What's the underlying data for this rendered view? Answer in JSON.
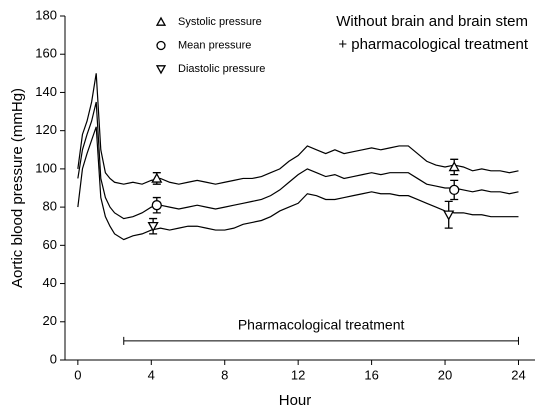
{
  "chart_data": {
    "type": "line",
    "annotation": [
      "Without brain and brain stem",
      "+ pharmacological treatment"
    ],
    "xlabel": "Hour",
    "ylabel": "Aortic blood pressure (mmHg)",
    "xlim": [
      -0.7,
      24.9
    ],
    "xticks": [
      0,
      4,
      8,
      12,
      16,
      20,
      24
    ],
    "ylim": [
      0,
      180
    ],
    "yticks": [
      0,
      20,
      40,
      60,
      80,
      100,
      120,
      140,
      160,
      180
    ],
    "x": [
      0,
      0.25,
      0.5,
      0.75,
      1,
      1.25,
      1.5,
      1.75,
      2,
      2.5,
      3,
      3.5,
      4,
      4.5,
      5,
      5.5,
      6,
      6.5,
      7,
      7.5,
      8,
      8.5,
      9,
      9.5,
      10,
      10.5,
      11,
      11.5,
      12,
      12.5,
      13,
      13.5,
      14,
      14.5,
      15,
      15.5,
      16,
      16.5,
      17,
      17.5,
      18,
      18.5,
      19,
      19.5,
      20,
      20.5,
      21,
      21.5,
      22,
      22.5,
      23,
      23.5,
      24
    ],
    "series": [
      {
        "name": "Systolic pressure",
        "marker": "triangle-up",
        "color": "#000000",
        "values": [
          100,
          118,
          125,
          135,
          150,
          110,
          98,
          95,
          93,
          92,
          93,
          92,
          94,
          95,
          93,
          92,
          93,
          94,
          93,
          92,
          93,
          94,
          95,
          95,
          96,
          98,
          100,
          104,
          107,
          112,
          110,
          108,
          110,
          108,
          109,
          110,
          111,
          110,
          111,
          112,
          112,
          108,
          104,
          102,
          101,
          102,
          101,
          99,
          100,
          99,
          99,
          98,
          99
        ],
        "marker_x": [
          4.3,
          20.5
        ],
        "marker_values": [
          95,
          101
        ],
        "marker_errors": [
          3,
          4
        ]
      },
      {
        "name": "Mean pressure",
        "marker": "circle",
        "color": "#000000",
        "values": [
          95,
          110,
          118,
          125,
          135,
          95,
          85,
          80,
          77,
          74,
          75,
          77,
          80,
          81,
          80,
          79,
          80,
          81,
          80,
          79,
          80,
          81,
          82,
          83,
          84,
          86,
          89,
          93,
          97,
          100,
          98,
          96,
          97,
          95,
          96,
          97,
          98,
          97,
          98,
          98,
          98,
          95,
          92,
          91,
          90,
          90,
          89,
          88,
          89,
          88,
          88,
          87,
          88
        ],
        "marker_x": [
          4.3,
          20.5
        ],
        "marker_values": [
          81,
          89
        ],
        "marker_errors": [
          4,
          5
        ]
      },
      {
        "name": "Diastolic pressure",
        "marker": "triangle-down",
        "color": "#000000",
        "values": [
          80,
          100,
          108,
          115,
          122,
          85,
          75,
          70,
          66,
          63,
          65,
          66,
          68,
          69,
          68,
          69,
          70,
          70,
          69,
          68,
          68,
          69,
          71,
          72,
          73,
          75,
          78,
          80,
          82,
          87,
          86,
          84,
          84,
          85,
          86,
          87,
          88,
          87,
          87,
          86,
          86,
          84,
          82,
          80,
          78,
          77,
          77,
          76,
          76,
          75,
          75,
          75,
          75
        ],
        "marker_x": [
          4.1,
          20.2
        ],
        "marker_values": [
          70,
          76
        ],
        "marker_errors": [
          4,
          7
        ]
      }
    ],
    "treatment": {
      "label": "Pharmacological treatment",
      "xstart": 2.5,
      "xend": 24,
      "y": 10
    }
  }
}
